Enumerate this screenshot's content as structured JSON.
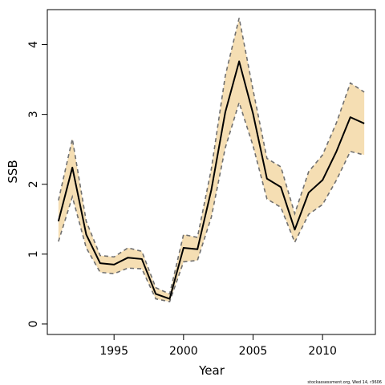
{
  "chart_data": {
    "type": "line",
    "xlabel": "Year",
    "ylabel": "SSB",
    "xlim": [
      1990.2,
      2013.8
    ],
    "ylim": [
      -0.15,
      4.5
    ],
    "x_ticks": [
      1995,
      2000,
      2005,
      2010
    ],
    "y_ticks": [
      0,
      1,
      2,
      3,
      4
    ],
    "grid": false,
    "colors": {
      "band": "#f5deb3",
      "line": "#000000",
      "bounds": "#707070"
    },
    "x": [
      1991,
      1992,
      1993,
      1994,
      1995,
      1996,
      1997,
      1998,
      1999,
      2000,
      2001,
      2002,
      2003,
      2004,
      2005,
      2006,
      2007,
      2008,
      2009,
      2010,
      2011,
      2012,
      2013
    ],
    "series": [
      {
        "role": "estimate",
        "values": [
          1.47,
          2.24,
          1.28,
          0.87,
          0.85,
          0.95,
          0.93,
          0.43,
          0.36,
          1.09,
          1.07,
          1.92,
          3.03,
          3.76,
          3.01,
          2.08,
          1.96,
          1.35,
          1.88,
          2.06,
          2.47,
          2.96,
          2.87
        ]
      },
      {
        "role": "upper",
        "values": [
          1.77,
          2.65,
          1.47,
          0.98,
          0.96,
          1.09,
          1.04,
          0.52,
          0.43,
          1.28,
          1.24,
          2.22,
          3.55,
          4.38,
          3.35,
          2.37,
          2.25,
          1.58,
          2.18,
          2.42,
          2.88,
          3.45,
          3.32
        ]
      },
      {
        "role": "lower",
        "values": [
          1.18,
          1.82,
          1.09,
          0.74,
          0.72,
          0.8,
          0.79,
          0.36,
          0.32,
          0.89,
          0.91,
          1.53,
          2.52,
          3.17,
          2.55,
          1.79,
          1.67,
          1.17,
          1.57,
          1.71,
          2.06,
          2.47,
          2.42
        ]
      }
    ]
  },
  "footer": {
    "note": "stockassessment.org, Wed 14, r3606"
  }
}
